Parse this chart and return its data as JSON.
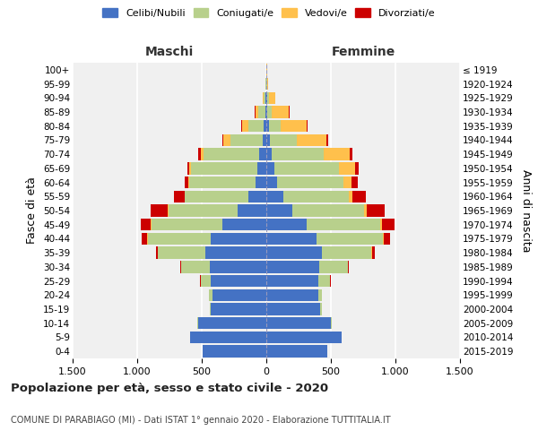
{
  "age_groups": [
    "0-4",
    "5-9",
    "10-14",
    "15-19",
    "20-24",
    "25-29",
    "30-34",
    "35-39",
    "40-44",
    "45-49",
    "50-54",
    "55-59",
    "60-64",
    "65-69",
    "70-74",
    "75-79",
    "80-84",
    "85-89",
    "90-94",
    "95-99",
    "100+"
  ],
  "birth_years": [
    "2015-2019",
    "2010-2014",
    "2005-2009",
    "2000-2004",
    "1995-1999",
    "1990-1994",
    "1985-1989",
    "1980-1984",
    "1975-1979",
    "1970-1974",
    "1965-1969",
    "1960-1964",
    "1955-1959",
    "1950-1954",
    "1945-1949",
    "1940-1944",
    "1935-1939",
    "1930-1934",
    "1925-1929",
    "1920-1924",
    "≤ 1919"
  ],
  "males": {
    "celibi": [
      490,
      590,
      530,
      430,
      420,
      430,
      440,
      470,
      430,
      340,
      220,
      140,
      85,
      70,
      55,
      30,
      20,
      10,
      5,
      2,
      2
    ],
    "coniugati": [
      0,
      0,
      5,
      10,
      25,
      80,
      220,
      370,
      490,
      550,
      540,
      490,
      510,
      510,
      430,
      250,
      120,
      50,
      15,
      3,
      0
    ],
    "vedovi": [
      0,
      0,
      0,
      0,
      0,
      0,
      1,
      2,
      3,
      5,
      5,
      5,
      10,
      15,
      25,
      50,
      50,
      25,
      10,
      2,
      0
    ],
    "divorziati": [
      0,
      0,
      0,
      0,
      2,
      5,
      5,
      15,
      40,
      80,
      130,
      80,
      25,
      15,
      15,
      10,
      5,
      2,
      0,
      0,
      0
    ]
  },
  "females": {
    "nubili": [
      470,
      580,
      500,
      420,
      400,
      400,
      410,
      430,
      390,
      310,
      200,
      130,
      80,
      60,
      45,
      25,
      20,
      10,
      8,
      3,
      2
    ],
    "coniugate": [
      0,
      0,
      5,
      10,
      30,
      90,
      220,
      380,
      510,
      570,
      560,
      510,
      520,
      500,
      400,
      210,
      90,
      35,
      10,
      3,
      0
    ],
    "vedove": [
      0,
      0,
      0,
      0,
      1,
      2,
      4,
      8,
      10,
      15,
      20,
      30,
      60,
      130,
      200,
      230,
      200,
      130,
      50,
      10,
      2
    ],
    "divorziate": [
      0,
      0,
      0,
      0,
      3,
      5,
      8,
      20,
      50,
      100,
      140,
      100,
      50,
      25,
      20,
      15,
      10,
      5,
      2,
      0,
      0
    ]
  },
  "colors": {
    "celibi_nubili": "#4472c4",
    "coniugati": "#b8d08c",
    "vedovi": "#ffc04c",
    "divorziati": "#cc0000"
  },
  "xlim": 1500,
  "title": "Popolazione per età, sesso e stato civile - 2020",
  "subtitle": "COMUNE DI PARABIAGO (MI) - Dati ISTAT 1° gennaio 2020 - Elaborazione TUTTITALIA.IT",
  "ylabel_left": "Fasce di età",
  "ylabel_right": "Anni di nascita",
  "xlabel_left": "Maschi",
  "xlabel_right": "Femmine",
  "header_color": "#333333",
  "background_color": "#f0f0f0"
}
